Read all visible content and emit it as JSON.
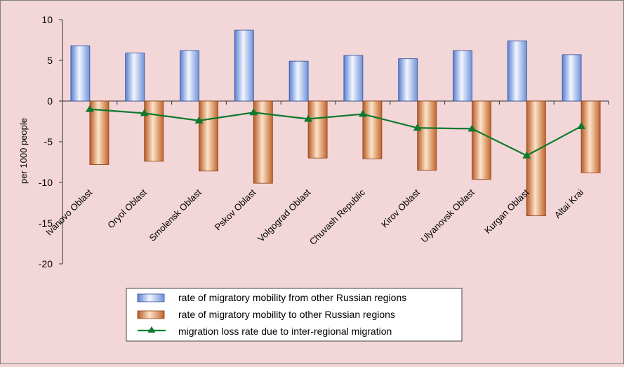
{
  "chart_data": {
    "type": "bar",
    "title": "",
    "xlabel": "",
    "ylabel": "per 1000 people",
    "ylim": [
      -20,
      10
    ],
    "yticks": [
      10,
      5,
      0,
      -5,
      -10,
      -15,
      -20
    ],
    "grid": false,
    "legend_position": "bottom-center",
    "categories": [
      "Ivanovo Oblast",
      "Oryol Oblast",
      "Smolensk Oblast",
      "Pskov Oblast",
      "Volgograd Oblast",
      "Chuvash Republic",
      "Kirov Oblast",
      "Ulyanovsk Oblast",
      "Kurgan Oblast",
      "Altai Krai"
    ],
    "series": [
      {
        "name": "rate of migratory mobility from other Russian regions",
        "kind": "bar",
        "color": "#8fb0e8",
        "values": [
          6.8,
          5.9,
          6.2,
          8.7,
          4.9,
          5.6,
          5.2,
          6.2,
          7.4,
          5.7
        ]
      },
      {
        "name": "rate of migratory mobility to other Russian regions",
        "kind": "bar",
        "color": "#e0955a",
        "values": [
          -7.8,
          -7.4,
          -8.6,
          -10.1,
          -7.0,
          -7.1,
          -8.5,
          -9.6,
          -14.1,
          -8.8
        ]
      },
      {
        "name": "migration loss rate due to inter-regional migration",
        "kind": "line",
        "color": "#0d7a2e",
        "values": [
          -1.0,
          -1.5,
          -2.4,
          -1.4,
          -2.2,
          -1.6,
          -3.3,
          -3.4,
          -6.7,
          -3.1
        ]
      }
    ]
  }
}
